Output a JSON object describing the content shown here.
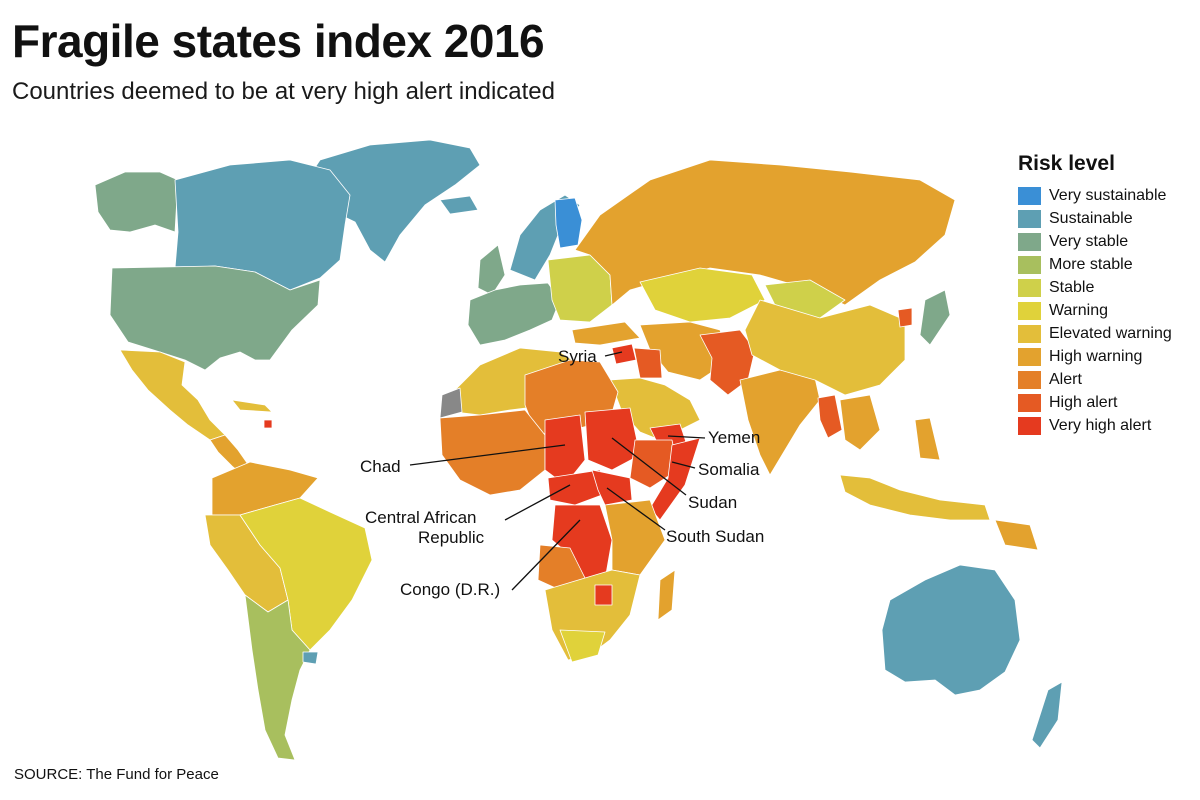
{
  "title": "Fragile states index 2016",
  "subtitle": "Countries deemed to be at very high alert indicated",
  "source": "SOURCE: The Fund for Peace",
  "legend": {
    "title": "Risk level",
    "levels": [
      {
        "label": "Very sustainable",
        "color": "#3a8fd6"
      },
      {
        "label": "Sustainable",
        "color": "#5e9fb3"
      },
      {
        "label": "Very stable",
        "color": "#7fa88a"
      },
      {
        "label": "More stable",
        "color": "#a8bf5e"
      },
      {
        "label": "Stable",
        "color": "#cfd04a"
      },
      {
        "label": "Warning",
        "color": "#e0d23a"
      },
      {
        "label": "Elevated warning",
        "color": "#e3be3a"
      },
      {
        "label": "High warning",
        "color": "#e3a22e"
      },
      {
        "label": "Alert",
        "color": "#e47f28"
      },
      {
        "label": "High alert",
        "color": "#e55a23"
      },
      {
        "label": "Very high alert",
        "color": "#e53a1f"
      }
    ]
  },
  "callouts": {
    "syria": "Syria",
    "yemen": "Yemen",
    "chad": "Chad",
    "somalia": "Somalia",
    "sudan": "Sudan",
    "car_line1": "Central African",
    "car_line2": "Republic",
    "south_sudan": "South Sudan",
    "congo": "Congo (D.R.)"
  }
}
